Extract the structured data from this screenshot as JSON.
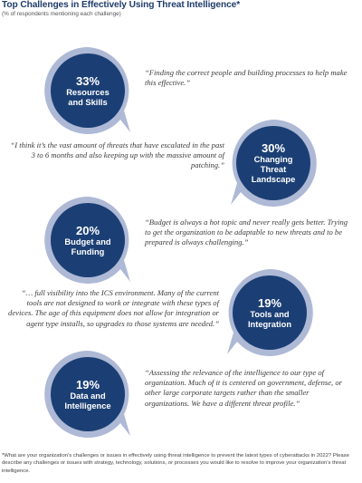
{
  "title": "Top Challenges in Effectively Using Threat Intelligence*",
  "subtitle": "(% of respondents mentioning each challenge)",
  "colors": {
    "bubble_inner": "#1b3f74",
    "bubble_ring": "#aeb9d6",
    "title": "#203c6b"
  },
  "chart_data": {
    "type": "bubble-list",
    "title": "Top Challenges in Effectively Using Threat Intelligence*",
    "subtitle": "(% of respondents mentioning each challenge)",
    "categories": [
      "Resources and Skills",
      "Changing Threat Landscape",
      "Budget and Funding",
      "Tools and Integration",
      "Data and Intelligence"
    ],
    "values": [
      33,
      30,
      20,
      19,
      19
    ],
    "unit": "%"
  },
  "items": [
    {
      "pct": "33%",
      "label": "Resources\nand Skills",
      "quote": "“Finding the correct people and building processes to help make this effective.”"
    },
    {
      "pct": "30%",
      "label": "Changing Threat\nLandscape",
      "quote": "“I think it’s the vast amount of threats that have escalated in the past 3 to 6 months and also keeping up with the massive amount of patching.”"
    },
    {
      "pct": "20%",
      "label": "Budget and\nFunding",
      "quote": "“Budget is always a hot topic and never really gets better. Trying to get the organization to be adaptable to new threats and to be prepared is always challenging.”"
    },
    {
      "pct": "19%",
      "label": "Tools and\nIntegration",
      "quote": "“… full visibility into the ICS environment. Many of the current tools are not designed to work or integrate with these types of devices. The age of this equipment does not allow for integration or agent type installs, so upgrades to those systems are needed.”"
    },
    {
      "pct": "19%",
      "label": "Data and\nIntelligence",
      "quote": "“Assessing the relevance of the intelligence to our type of organization. Much of it is centered on government, defense, or other large corporate targets rather than the smaller organizations. We have a different threat profile.”"
    }
  ],
  "footnote": "*What are your organization’s challenges or issues in effectively using threat intelligence to prevent the latest types of cyberattacks in 2022? Please describe any challenges or issues with strategy, technology, solutions, or processes you would like to resolve to improve your organization’s threat intelligence."
}
